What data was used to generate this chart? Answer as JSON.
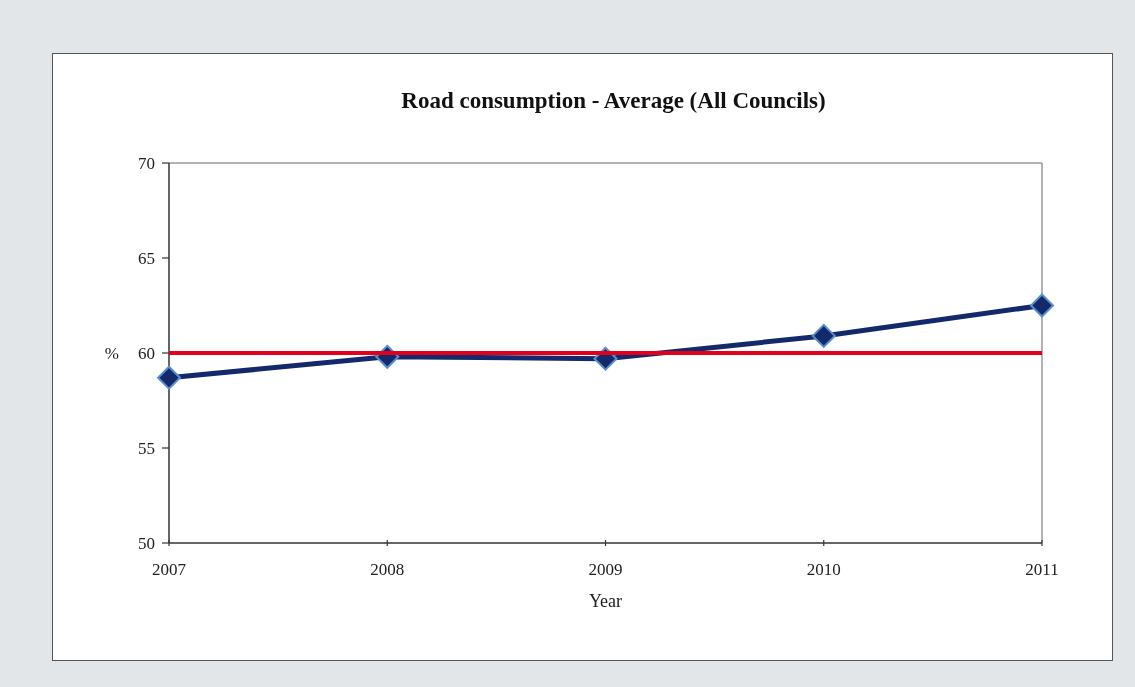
{
  "chart_data": {
    "type": "line",
    "title": "Road consumption - Average (All Councils)",
    "xlabel": "Year",
    "ylabel": "%",
    "x": [
      2007,
      2008,
      2009,
      2010,
      2011
    ],
    "series": [
      {
        "color": "#13296b",
        "values": [
          58.7,
          59.8,
          59.7,
          60.9,
          62.5
        ]
      }
    ],
    "xlim": [
      2007,
      2011
    ],
    "xticks": [
      2007,
      2008,
      2009,
      2010,
      2011
    ],
    "ylim": [
      50,
      70
    ],
    "yticks": [
      50,
      55,
      60,
      65,
      70
    ],
    "ref_lines": [
      {
        "axis": "y",
        "value": 60,
        "color": "#e2001a"
      }
    ],
    "grid": false,
    "marker": "diamond",
    "line_style": "solid"
  }
}
